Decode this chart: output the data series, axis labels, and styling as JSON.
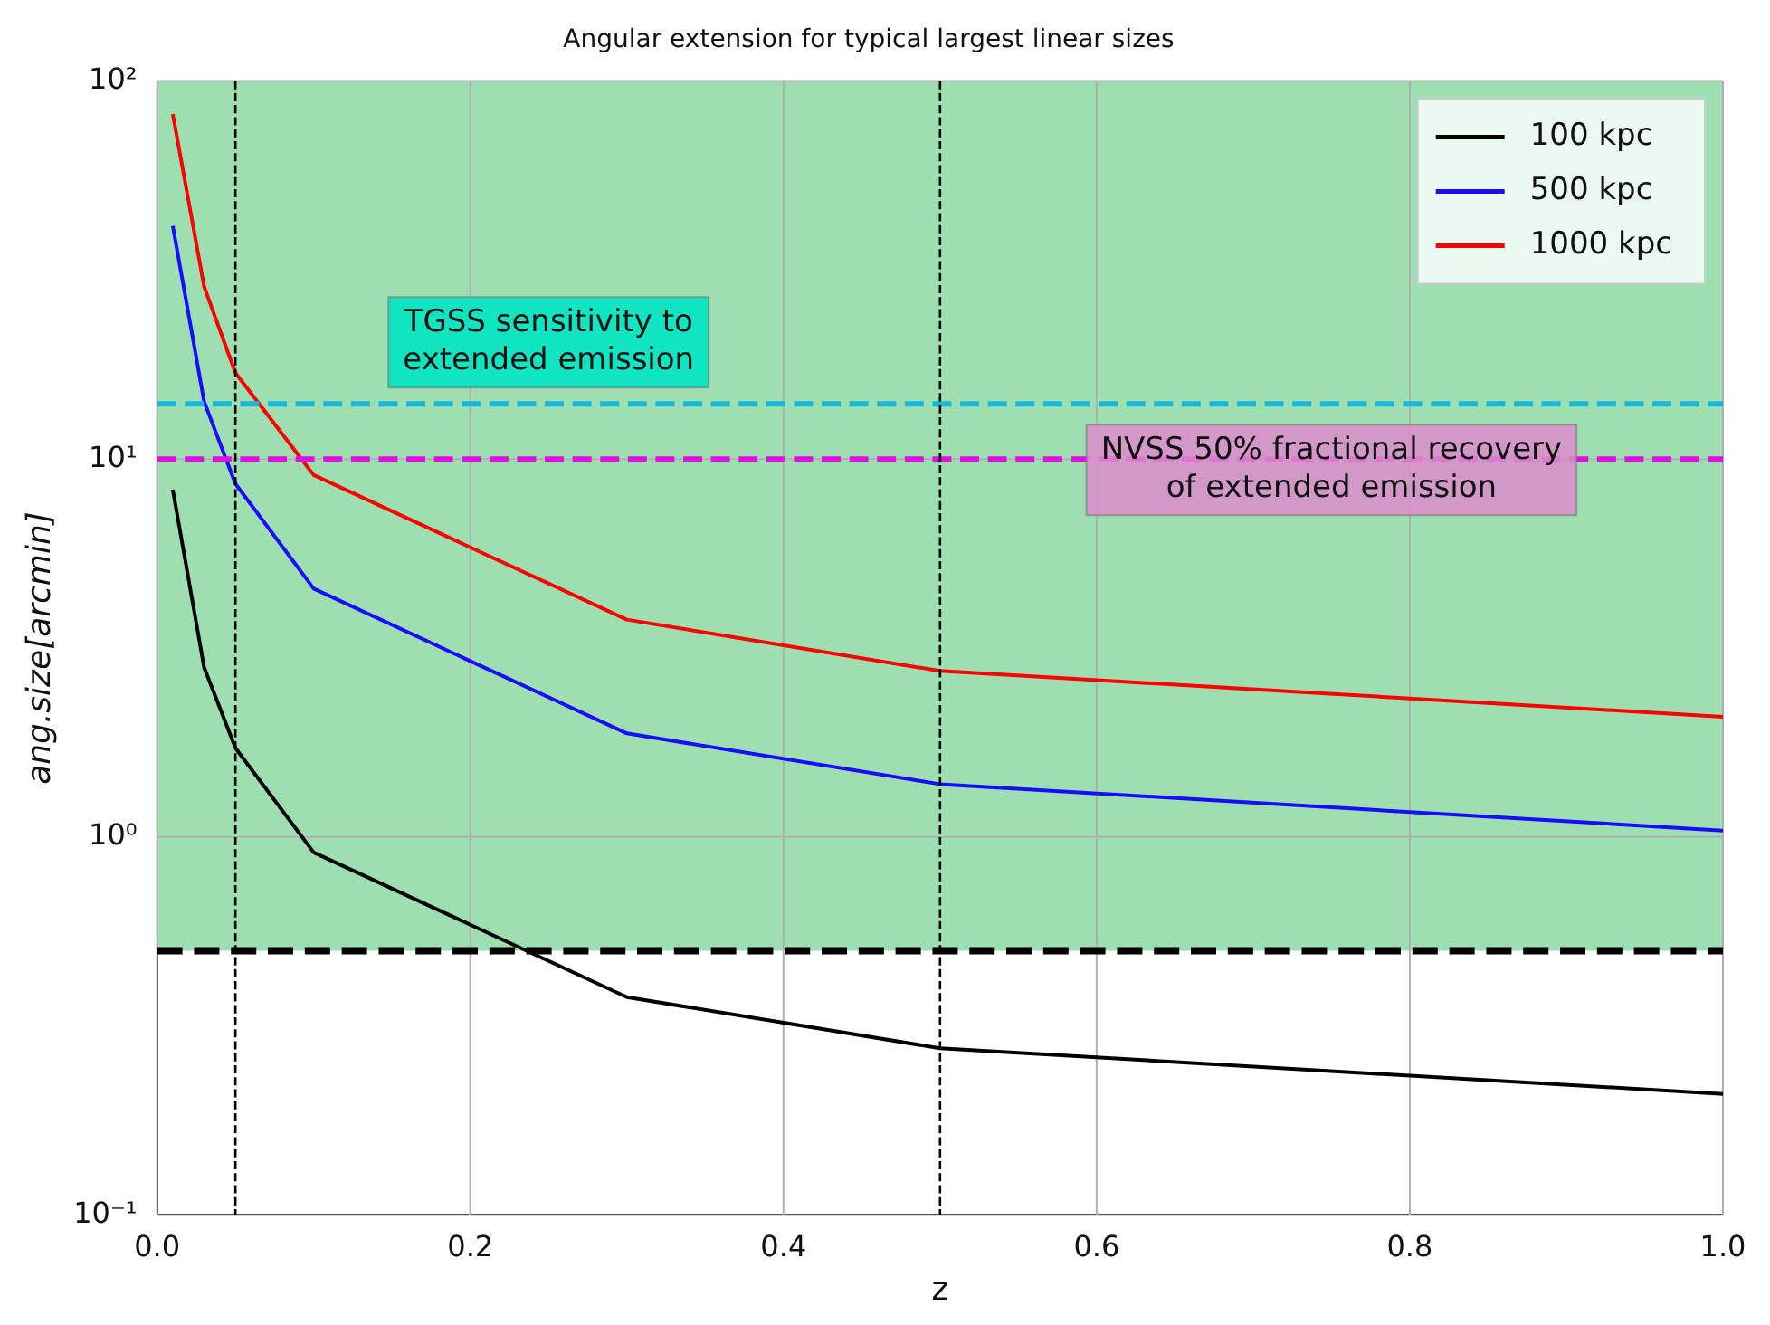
{
  "chart_data": {
    "type": "line",
    "title": "Angular extension for typical largest linear sizes",
    "xlabel": "z",
    "ylabel": "ang.size[arcmin]",
    "x": [
      0.01,
      0.03,
      0.05,
      0.1,
      0.3,
      0.5,
      1.0
    ],
    "series": [
      {
        "name": "100 kpc",
        "color": "#000000",
        "values": [
          8.3,
          2.81,
          1.72,
          0.91,
          0.377,
          0.276,
          0.209
        ]
      },
      {
        "name": "500 kpc",
        "color": "#1a0dff",
        "values": [
          41.4,
          14.2,
          8.6,
          4.54,
          1.88,
          1.38,
          1.04
        ]
      },
      {
        "name": "1000 kpc",
        "color": "#ff0000",
        "values": [
          81.8,
          28.6,
          16.9,
          9.07,
          3.76,
          2.75,
          2.08
        ]
      }
    ],
    "log": "y",
    "xlim": [
      0,
      1
    ],
    "ylim": [
      0.1,
      100
    ],
    "xticks": [
      {
        "value": 0,
        "label": "0.0"
      },
      0.2,
      0.4,
      0.6,
      0.8,
      {
        "value": 1,
        "label": "1.0"
      }
    ],
    "yticks": [
      {
        "value": 0.1,
        "label": "10⁻¹"
      },
      {
        "value": 1,
        "label": "10⁰"
      },
      {
        "value": 10,
        "label": "10¹"
      },
      {
        "value": 100,
        "label": "10²"
      }
    ],
    "grid": true,
    "legend": "top right",
    "marker": "none",
    "line_style": "solid",
    "bands": [
      {
        "axis": "y",
        "from": 0.5,
        "to": 100,
        "color": "#9ddfb0"
      }
    ],
    "ref_lines": [
      {
        "axis": "y",
        "value": 14,
        "label": "TGSS sensitivity to\nextended emission",
        "color": "#19b8d8",
        "line_style": "dashed"
      },
      {
        "axis": "y",
        "value": 10,
        "label": "NVSS 50% fractional recovery\nof extended emission",
        "color": "#e010e0",
        "line_style": "dashed"
      },
      {
        "axis": "y",
        "value": 0.5,
        "color": "#000000",
        "line_style": "dashed"
      },
      {
        "axis": "x",
        "value": 0.05,
        "color": "#000000",
        "line_style": "dashed"
      },
      {
        "axis": "x",
        "value": 0.5,
        "color": "#000000",
        "line_style": "dashed"
      }
    ]
  }
}
